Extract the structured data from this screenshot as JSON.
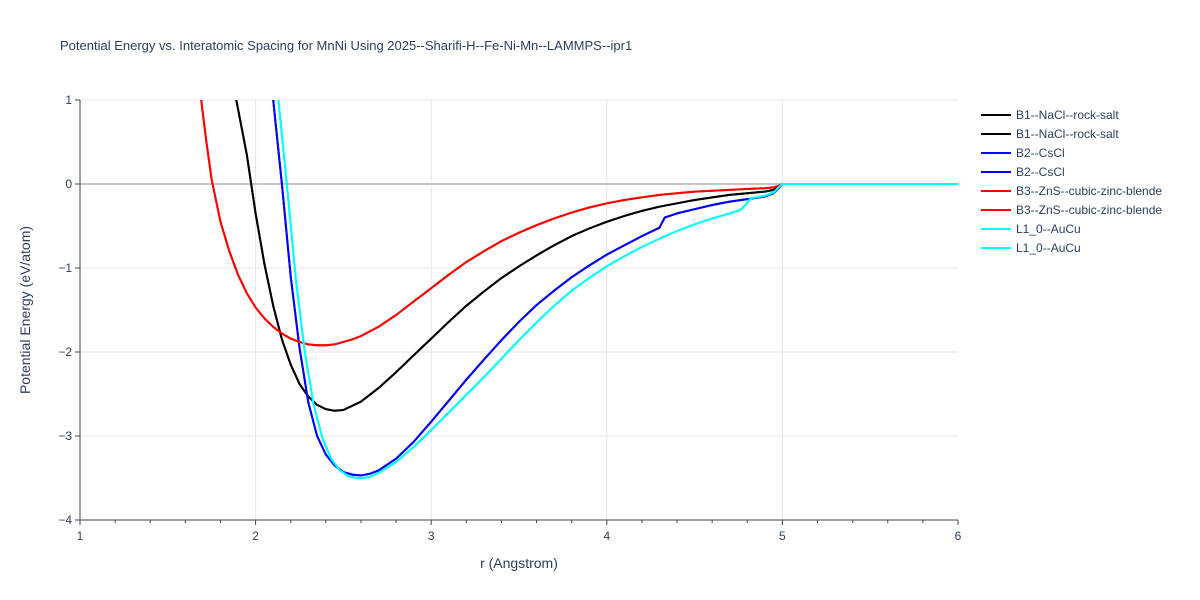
{
  "chart_data": {
    "type": "line",
    "title": "Potential Energy vs. Interatomic Spacing for MnNi Using 2025--Sharifi-H--Fe-Ni-Mn--LAMMPS--ipr1",
    "xlabel": "r (Angstrom)",
    "ylabel": "Potential Energy (eV/atom)",
    "xlim": [
      1,
      6
    ],
    "ylim": [
      -4,
      1
    ],
    "xticks": [
      1,
      2,
      3,
      4,
      5,
      6
    ],
    "yticks": [
      -4,
      -3,
      -2,
      -1,
      0,
      1
    ],
    "xtick_labels": [
      "1",
      "2",
      "3",
      "4",
      "5",
      "6"
    ],
    "ytick_labels": [
      "−4",
      "−3",
      "−2",
      "−1",
      "0",
      "1"
    ],
    "grid": true,
    "legend_position": "top-right",
    "series": [
      {
        "name": "B1--NaCl--rock-salt",
        "color": "#000000",
        "x": [
          1.89,
          1.95,
          2.0,
          2.05,
          2.1,
          2.15,
          2.2,
          2.25,
          2.3,
          2.35,
          2.4,
          2.45,
          2.5,
          2.6,
          2.7,
          2.8,
          2.9,
          3.0,
          3.1,
          3.2,
          3.3,
          3.4,
          3.5,
          3.6,
          3.7,
          3.8,
          3.9,
          4.0,
          4.1,
          4.2,
          4.3,
          4.4,
          4.5,
          4.6,
          4.7,
          4.8,
          4.9,
          4.95,
          4.98,
          5.0,
          6.0
        ],
        "y": [
          1.0,
          0.35,
          -0.35,
          -0.95,
          -1.45,
          -1.85,
          -2.15,
          -2.38,
          -2.53,
          -2.63,
          -2.68,
          -2.7,
          -2.69,
          -2.59,
          -2.43,
          -2.24,
          -2.04,
          -1.84,
          -1.64,
          -1.45,
          -1.28,
          -1.12,
          -0.98,
          -0.85,
          -0.73,
          -0.62,
          -0.53,
          -0.45,
          -0.38,
          -0.32,
          -0.27,
          -0.23,
          -0.19,
          -0.16,
          -0.13,
          -0.11,
          -0.09,
          -0.07,
          -0.03,
          0.0,
          0.0
        ]
      },
      {
        "name": "B1--NaCl--rock-salt",
        "color": "#000000",
        "x": [
          1.89,
          1.95,
          2.0,
          2.05,
          2.1,
          2.15,
          2.2,
          2.25,
          2.3,
          2.35,
          2.4,
          2.45,
          2.5,
          2.6,
          2.7,
          2.8,
          2.9,
          3.0,
          3.1,
          3.2,
          3.3,
          3.4,
          3.5,
          3.6,
          3.7,
          3.8,
          3.9,
          4.0,
          4.1,
          4.2,
          4.3,
          4.4,
          4.5,
          4.6,
          4.7,
          4.8,
          4.9,
          4.95,
          4.98,
          5.0,
          6.0
        ],
        "y": [
          1.0,
          0.35,
          -0.35,
          -0.95,
          -1.45,
          -1.85,
          -2.15,
          -2.38,
          -2.53,
          -2.63,
          -2.68,
          -2.7,
          -2.69,
          -2.59,
          -2.43,
          -2.24,
          -2.04,
          -1.84,
          -1.64,
          -1.45,
          -1.28,
          -1.12,
          -0.98,
          -0.85,
          -0.73,
          -0.62,
          -0.53,
          -0.45,
          -0.38,
          -0.32,
          -0.27,
          -0.23,
          -0.19,
          -0.16,
          -0.13,
          -0.11,
          -0.09,
          -0.07,
          -0.03,
          0.0,
          0.0
        ]
      },
      {
        "name": "B2--CsCl",
        "color": "#0000ff",
        "x": [
          2.1,
          2.15,
          2.2,
          2.25,
          2.3,
          2.35,
          2.4,
          2.45,
          2.5,
          2.55,
          2.6,
          2.65,
          2.7,
          2.8,
          2.9,
          3.0,
          3.1,
          3.2,
          3.3,
          3.4,
          3.5,
          3.6,
          3.7,
          3.8,
          3.9,
          4.0,
          4.1,
          4.2,
          4.3,
          4.33,
          4.4,
          4.5,
          4.6,
          4.7,
          4.8,
          4.9,
          4.95,
          4.98,
          5.0,
          6.0
        ],
        "y": [
          1.0,
          0.0,
          -1.1,
          -1.95,
          -2.6,
          -3.0,
          -3.22,
          -3.35,
          -3.43,
          -3.46,
          -3.47,
          -3.45,
          -3.41,
          -3.27,
          -3.07,
          -2.83,
          -2.58,
          -2.33,
          -2.09,
          -1.86,
          -1.64,
          -1.44,
          -1.27,
          -1.11,
          -0.97,
          -0.84,
          -0.73,
          -0.62,
          -0.52,
          -0.4,
          -0.35,
          -0.3,
          -0.25,
          -0.21,
          -0.18,
          -0.15,
          -0.11,
          -0.05,
          0.0,
          0.0
        ]
      },
      {
        "name": "B2--CsCl",
        "color": "#0000ff",
        "x": [
          2.1,
          2.15,
          2.2,
          2.25,
          2.3,
          2.35,
          2.4,
          2.45,
          2.5,
          2.55,
          2.6,
          2.65,
          2.7,
          2.8,
          2.9,
          3.0,
          3.1,
          3.2,
          3.3,
          3.4,
          3.5,
          3.6,
          3.7,
          3.8,
          3.9,
          4.0,
          4.1,
          4.2,
          4.3,
          4.33,
          4.4,
          4.5,
          4.6,
          4.7,
          4.8,
          4.9,
          4.95,
          4.98,
          5.0,
          6.0
        ],
        "y": [
          1.0,
          0.0,
          -1.1,
          -1.95,
          -2.6,
          -3.0,
          -3.22,
          -3.35,
          -3.43,
          -3.46,
          -3.47,
          -3.45,
          -3.41,
          -3.27,
          -3.07,
          -2.83,
          -2.58,
          -2.33,
          -2.09,
          -1.86,
          -1.64,
          -1.44,
          -1.27,
          -1.11,
          -0.97,
          -0.84,
          -0.73,
          -0.62,
          -0.52,
          -0.4,
          -0.35,
          -0.3,
          -0.25,
          -0.21,
          -0.18,
          -0.15,
          -0.11,
          -0.05,
          0.0,
          0.0
        ]
      },
      {
        "name": "B3--ZnS--cubic-zinc-blende",
        "color": "#ff0000",
        "x": [
          1.69,
          1.72,
          1.75,
          1.8,
          1.85,
          1.9,
          1.95,
          2.0,
          2.05,
          2.1,
          2.15,
          2.2,
          2.25,
          2.3,
          2.35,
          2.4,
          2.45,
          2.5,
          2.55,
          2.6,
          2.7,
          2.8,
          2.9,
          3.0,
          3.1,
          3.2,
          3.3,
          3.4,
          3.5,
          3.6,
          3.7,
          3.8,
          3.9,
          4.0,
          4.1,
          4.2,
          4.3,
          4.4,
          4.5,
          4.6,
          4.7,
          4.8,
          4.9,
          4.95,
          4.98,
          5.0,
          6.0
        ],
        "y": [
          1.0,
          0.5,
          0.05,
          -0.45,
          -0.8,
          -1.08,
          -1.3,
          -1.47,
          -1.6,
          -1.7,
          -1.78,
          -1.84,
          -1.88,
          -1.91,
          -1.92,
          -1.92,
          -1.91,
          -1.88,
          -1.85,
          -1.81,
          -1.7,
          -1.56,
          -1.4,
          -1.24,
          -1.08,
          -0.93,
          -0.8,
          -0.68,
          -0.58,
          -0.49,
          -0.41,
          -0.34,
          -0.28,
          -0.23,
          -0.19,
          -0.16,
          -0.13,
          -0.11,
          -0.09,
          -0.08,
          -0.07,
          -0.06,
          -0.05,
          -0.04,
          -0.02,
          0.0,
          0.0
        ]
      },
      {
        "name": "B3--ZnS--cubic-zinc-blende",
        "color": "#ff0000",
        "x": [
          1.69,
          1.72,
          1.75,
          1.8,
          1.85,
          1.9,
          1.95,
          2.0,
          2.05,
          2.1,
          2.15,
          2.2,
          2.25,
          2.3,
          2.35,
          2.4,
          2.45,
          2.5,
          2.55,
          2.6,
          2.7,
          2.8,
          2.9,
          3.0,
          3.1,
          3.2,
          3.3,
          3.4,
          3.5,
          3.6,
          3.7,
          3.8,
          3.9,
          4.0,
          4.1,
          4.2,
          4.3,
          4.4,
          4.5,
          4.6,
          4.7,
          4.8,
          4.9,
          4.95,
          4.98,
          5.0,
          6.0
        ],
        "y": [
          1.0,
          0.5,
          0.05,
          -0.45,
          -0.8,
          -1.08,
          -1.3,
          -1.47,
          -1.6,
          -1.7,
          -1.78,
          -1.84,
          -1.88,
          -1.91,
          -1.92,
          -1.92,
          -1.91,
          -1.88,
          -1.85,
          -1.81,
          -1.7,
          -1.56,
          -1.4,
          -1.24,
          -1.08,
          -0.93,
          -0.8,
          -0.68,
          -0.58,
          -0.49,
          -0.41,
          -0.34,
          -0.28,
          -0.23,
          -0.19,
          -0.16,
          -0.13,
          -0.11,
          -0.09,
          -0.08,
          -0.07,
          -0.06,
          -0.05,
          -0.04,
          -0.02,
          0.0,
          0.0
        ]
      },
      {
        "name": "L1_0--AuCu",
        "color": "#00ffff",
        "x": [
          2.13,
          2.18,
          2.23,
          2.28,
          2.33,
          2.38,
          2.43,
          2.48,
          2.53,
          2.58,
          2.62,
          2.66,
          2.7,
          2.8,
          2.9,
          3.0,
          3.1,
          3.2,
          3.3,
          3.4,
          3.5,
          3.6,
          3.7,
          3.8,
          3.9,
          4.0,
          4.1,
          4.2,
          4.3,
          4.4,
          4.5,
          4.6,
          4.7,
          4.76,
          4.79,
          4.82,
          4.9,
          4.95,
          4.98,
          5.0,
          6.0
        ],
        "y": [
          1.0,
          -0.05,
          -1.15,
          -2.0,
          -2.62,
          -3.02,
          -3.27,
          -3.41,
          -3.48,
          -3.5,
          -3.5,
          -3.48,
          -3.44,
          -3.31,
          -3.13,
          -2.93,
          -2.72,
          -2.51,
          -2.3,
          -2.08,
          -1.86,
          -1.65,
          -1.45,
          -1.27,
          -1.12,
          -0.98,
          -0.86,
          -0.75,
          -0.65,
          -0.56,
          -0.48,
          -0.41,
          -0.35,
          -0.31,
          -0.25,
          -0.17,
          -0.14,
          -0.1,
          -0.04,
          0.0,
          0.0
        ]
      },
      {
        "name": "L1_0--AuCu",
        "color": "#00ffff",
        "x": [
          2.13,
          2.18,
          2.23,
          2.28,
          2.33,
          2.38,
          2.43,
          2.48,
          2.53,
          2.58,
          2.62,
          2.66,
          2.7,
          2.8,
          2.9,
          3.0,
          3.1,
          3.2,
          3.3,
          3.4,
          3.5,
          3.6,
          3.7,
          3.8,
          3.9,
          4.0,
          4.1,
          4.2,
          4.3,
          4.4,
          4.5,
          4.6,
          4.7,
          4.76,
          4.79,
          4.82,
          4.9,
          4.95,
          4.98,
          5.0,
          6.0
        ],
        "y": [
          1.0,
          -0.05,
          -1.15,
          -2.0,
          -2.62,
          -3.02,
          -3.27,
          -3.41,
          -3.48,
          -3.5,
          -3.5,
          -3.48,
          -3.44,
          -3.31,
          -3.13,
          -2.93,
          -2.72,
          -2.51,
          -2.3,
          -2.08,
          -1.86,
          -1.65,
          -1.45,
          -1.27,
          -1.12,
          -0.98,
          -0.86,
          -0.75,
          -0.65,
          -0.56,
          -0.48,
          -0.41,
          -0.35,
          -0.31,
          -0.25,
          -0.17,
          -0.14,
          -0.1,
          -0.04,
          0.0,
          0.0
        ]
      }
    ]
  }
}
